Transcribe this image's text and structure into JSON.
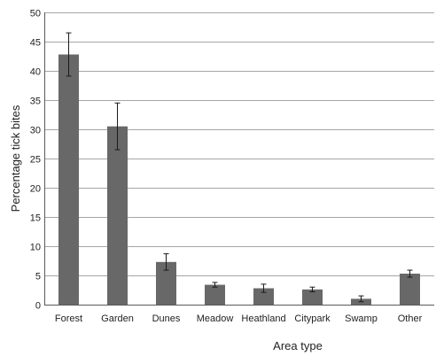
{
  "chart_data": {
    "type": "bar",
    "xlabel": "Area type",
    "ylabel": "Percentage tick bites",
    "ylim": [
      0,
      50
    ],
    "yticks": [
      "0",
      "5",
      "10",
      "15",
      "20",
      "25",
      "30",
      "35",
      "40",
      "45",
      "50"
    ],
    "categories": [
      "Forest",
      "Garden",
      "Dunes",
      "Meadow",
      "Heathland",
      "Citypark",
      "Swamp",
      "Other"
    ],
    "values": [
      42.8,
      30.5,
      7.3,
      3.4,
      2.8,
      2.6,
      1.0,
      5.3
    ],
    "error": [
      3.7,
      4.0,
      1.4,
      0.4,
      0.7,
      0.4,
      0.5,
      0.6
    ],
    "grid": true,
    "legend": "none",
    "colors": {
      "bar": "#686868",
      "grid": "#a6a6a6",
      "axis": "#5a5a5a"
    }
  }
}
